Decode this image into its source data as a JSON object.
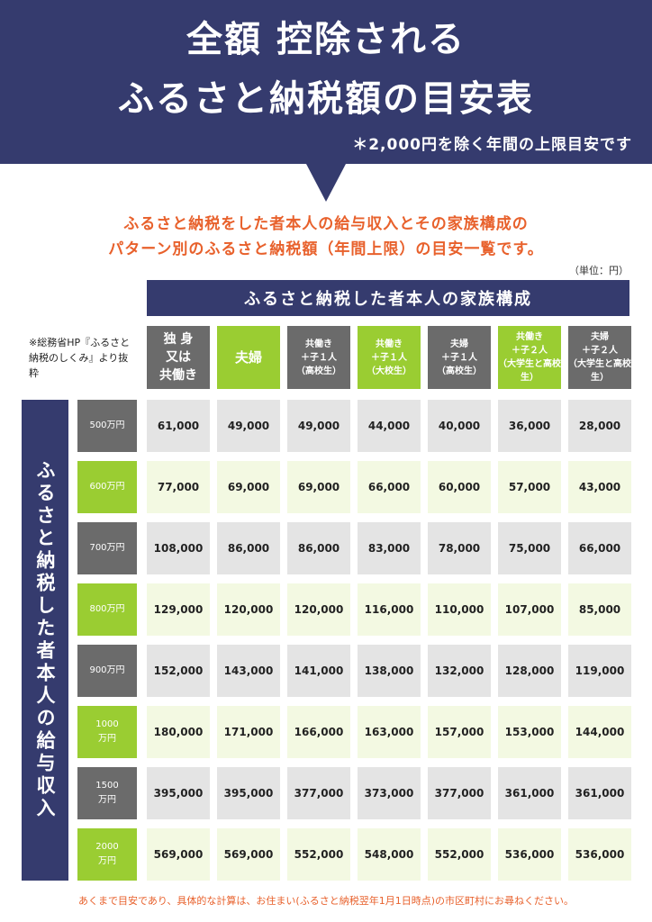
{
  "header": {
    "title_line1": "全額 控除される",
    "title_line2": "ふるさと納税額の目安表",
    "subnote": "＊2,000円を除く年間の上限目安です"
  },
  "intro": {
    "line1": "ふるさと納税をした者本人の給与収入とその家族構成の",
    "line2": "パターン別のふるさと納税額（年間上限）の目安一覧です。"
  },
  "unit": "（単位：円）",
  "family_header": "ふるさと納税した者本人の家族構成",
  "source_note": "※総務省HP『ふるさと納税のしくみ』より抜粋",
  "side_label": "ふるさと納税した者本人の給与収入",
  "columns": [
    {
      "label": "独 身\n又は\n共働き",
      "size": "14px",
      "color": "gray"
    },
    {
      "label": "夫婦",
      "size": "15px",
      "color": "green"
    },
    {
      "label": "共働き\n＋子１人\n（高校生）",
      "size": "10px",
      "color": "gray"
    },
    {
      "label": "共働き\n＋子１人\n（大校生）",
      "size": "10px",
      "color": "green"
    },
    {
      "label": "夫婦\n＋子１人\n（高校生）",
      "size": "10px",
      "color": "gray"
    },
    {
      "label": "共働き\n＋子２人\n（大学生と高校生）",
      "size": "10px",
      "color": "green"
    },
    {
      "label": "夫婦\n＋子２人\n（大学生と高校生）",
      "size": "10px",
      "color": "gray"
    }
  ],
  "rows": [
    {
      "income": "500万円",
      "color": "gray",
      "values": [
        "61,000",
        "49,000",
        "49,000",
        "44,000",
        "40,000",
        "36,000",
        "28,000"
      ]
    },
    {
      "income": "600万円",
      "color": "green",
      "values": [
        "77,000",
        "69,000",
        "69,000",
        "66,000",
        "60,000",
        "57,000",
        "43,000"
      ]
    },
    {
      "income": "700万円",
      "color": "gray",
      "values": [
        "108,000",
        "86,000",
        "86,000",
        "83,000",
        "78,000",
        "75,000",
        "66,000"
      ]
    },
    {
      "income": "800万円",
      "color": "green",
      "values": [
        "129,000",
        "120,000",
        "120,000",
        "116,000",
        "110,000",
        "107,000",
        "85,000"
      ]
    },
    {
      "income": "900万円",
      "color": "gray",
      "values": [
        "152,000",
        "143,000",
        "141,000",
        "138,000",
        "132,000",
        "128,000",
        "119,000"
      ]
    },
    {
      "income": "1000\n万円",
      "color": "green",
      "values": [
        "180,000",
        "171,000",
        "166,000",
        "163,000",
        "157,000",
        "153,000",
        "144,000"
      ]
    },
    {
      "income": "1500\n万円",
      "color": "gray",
      "values": [
        "395,000",
        "395,000",
        "377,000",
        "373,000",
        "377,000",
        "361,000",
        "361,000"
      ]
    },
    {
      "income": "2000\n万円",
      "color": "green",
      "values": [
        "569,000",
        "569,000",
        "552,000",
        "548,000",
        "552,000",
        "536,000",
        "536,000"
      ]
    }
  ],
  "footer": "あくまで目安であり、具体的な計算は、お住まい(ふるさと納税翌年1月1日時点)の市区町村にお尋ねください。"
}
